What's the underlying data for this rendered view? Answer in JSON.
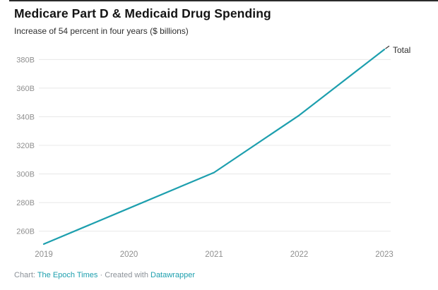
{
  "header": {
    "title": "Medicare Part D & Medicaid Drug Spending",
    "subtitle": "Increase of 54 percent in four years ($ billions)"
  },
  "chart_data": {
    "type": "line",
    "title": "Medicare Part D & Medicaid Drug Spending",
    "subtitle": "Increase of 54 percent in four years ($ billions)",
    "x": [
      2019,
      2020,
      2021,
      2022,
      2023
    ],
    "xtick_labels": [
      "2019",
      "2020",
      "2021",
      "2022",
      "2023"
    ],
    "series": [
      {
        "name": "Total",
        "values": [
          251,
          276,
          301,
          341,
          387
        ]
      }
    ],
    "unit": "$ billions",
    "ylim": [
      248,
      392
    ],
    "yticks": [
      260,
      280,
      300,
      320,
      340,
      360,
      380
    ],
    "ytick_labels": [
      "260B",
      "280B",
      "300B",
      "320B",
      "340B",
      "360B",
      "380B"
    ],
    "grid": "horizontal",
    "legend_position": "end-of-line-label",
    "end_label": "Total",
    "line_color": "#1d9fae",
    "tick_label_color": "#8f8f8f",
    "gridline_color": "#e8e8e8",
    "end_label_color": "#2e2e2e"
  },
  "footer": {
    "prefix": "Chart: ",
    "source_link": "The Epoch Times",
    "separator": " · ",
    "created_with": "Created with ",
    "tool_link": "Datawrapper"
  },
  "colors": {
    "accent_teal": "#1d9fae",
    "title_text": "#131313",
    "subtitle_text": "#2e2e2e",
    "tick_text": "#8f8f8f",
    "gridline": "#e8e8e8",
    "top_strip": "#2b2b2b",
    "footer_text": "#8b9198"
  }
}
